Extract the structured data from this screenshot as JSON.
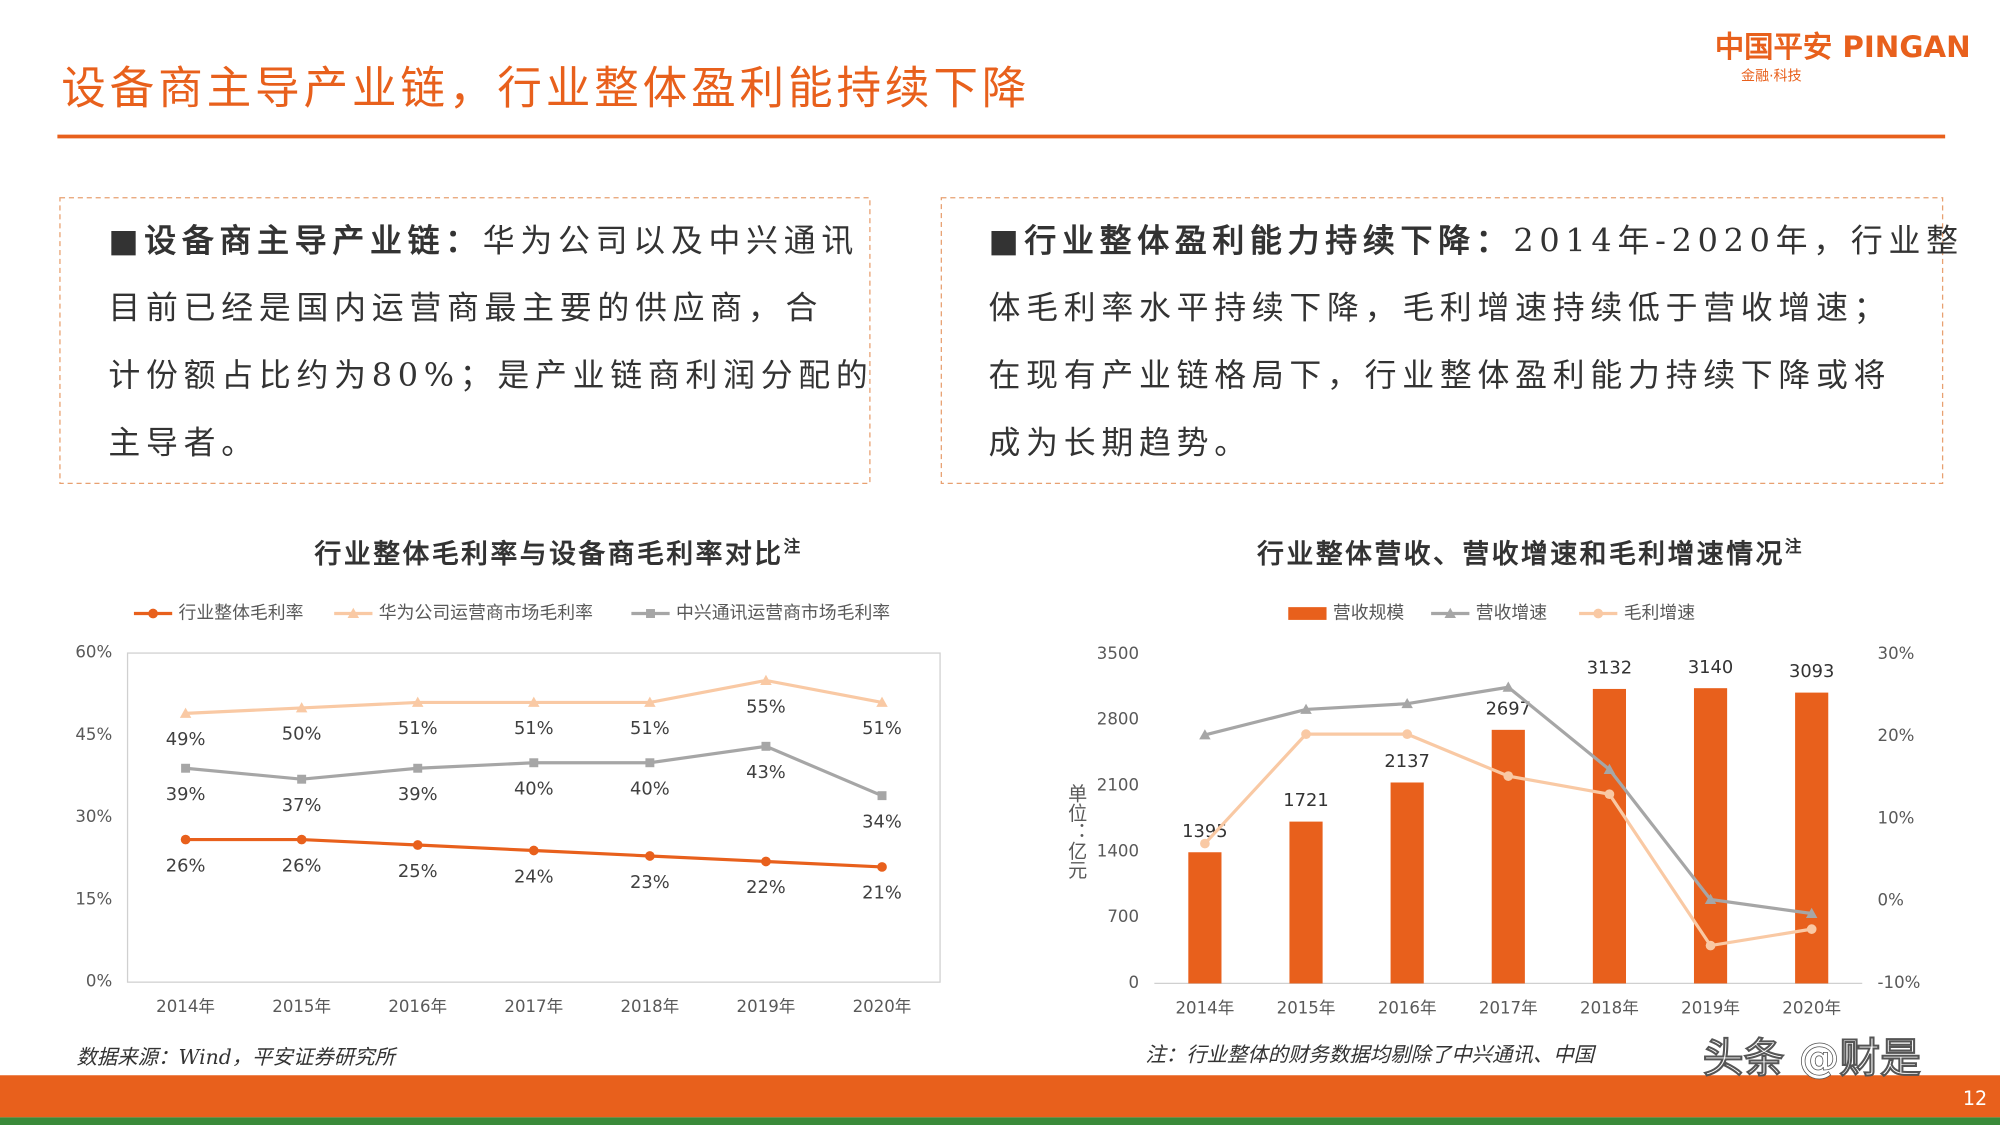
{
  "header": {
    "title": "设备商主导产业链，行业整体盈利能持续下降",
    "logo": "中国平安 PINGAN",
    "logo_sub": "金融·科技"
  },
  "boxes": [
    {
      "lead": "■设备商主导产业链：",
      "lines": [
        "华为公司以及中兴通讯",
        "目前已经是国内运营商最主要的供应商，合",
        "计份额占比约为80%；是产业链商利润分配的",
        "主导者。"
      ]
    },
    {
      "lead": "■行业整体盈利能力持续下降：",
      "lines": [
        "2014年-2020年，行业整",
        "体毛利率水平持续下降，毛利增速持续低于营收增速；",
        "在现有产业链格局下，行业整体盈利能力持续下降或将",
        "成为长期趋势。"
      ]
    }
  ],
  "chart_data": [
    {
      "type": "line",
      "title": "行业整体毛利率与设备商毛利率对比",
      "title_note": "注",
      "categories": [
        "2014年",
        "2015年",
        "2016年",
        "2017年",
        "2018年",
        "2019年",
        "2020年"
      ],
      "series": [
        {
          "name": "行业整体毛利率",
          "color": "#e8601c",
          "marker": "circle",
          "values": [
            26,
            26,
            25,
            24,
            23,
            22,
            21
          ],
          "value_labels": [
            "26%",
            "26%",
            "25%",
            "24%",
            "23%",
            "22%",
            "21%"
          ]
        },
        {
          "name": "华为公司运营商市场毛利率",
          "color": "#f9c9a4",
          "marker": "triangle",
          "values": [
            49,
            50,
            51,
            51,
            51,
            55,
            51
          ],
          "value_labels": [
            "49%",
            "50%",
            "51%",
            "51%",
            "51%",
            "55%",
            "51%"
          ]
        },
        {
          "name": "中兴通讯运营商市场毛利率",
          "color": "#a6a6a6",
          "marker": "square",
          "values": [
            39,
            37,
            39,
            40,
            40,
            43,
            34
          ],
          "value_labels": [
            "39%",
            "37%",
            "39%",
            "40%",
            "40%",
            "43%",
            "34%"
          ]
        }
      ],
      "ylim": [
        0,
        60
      ],
      "yticks": [
        {
          "value": 0,
          "label": "0%"
        },
        {
          "value": 15,
          "label": "15%"
        },
        {
          "value": 30,
          "label": "30%"
        },
        {
          "value": 45,
          "label": "45%"
        },
        {
          "value": 60,
          "label": "60%"
        }
      ],
      "grid": false
    },
    {
      "type": "bar",
      "title": "行业整体营收、营收增速和毛利增速情况",
      "title_note": "注",
      "y_label": "单位：亿元",
      "categories": [
        "2014年",
        "2015年",
        "2016年",
        "2017年",
        "2018年",
        "2019年",
        "2020年"
      ],
      "series": [
        {
          "name": "营收规模",
          "color": "#e8601c",
          "values": [
            1395,
            1721,
            2137,
            2697,
            3132,
            3140,
            3093
          ]
        },
        {
          "name": "营收增速",
          "color": "#a6a6a6",
          "type": "line",
          "axis": "y2",
          "marker": "triangle",
          "values": [
            20.2,
            23.3,
            24,
            26,
            16,
            0.2,
            -1.5
          ]
        },
        {
          "name": "毛利增速",
          "color": "#f9c9a4",
          "type": "line",
          "axis": "y2",
          "marker": "circle",
          "values": [
            7,
            20.3,
            20.3,
            15.2,
            13,
            -5.4,
            -3.4
          ]
        }
      ],
      "ylim": [
        0,
        3500
      ],
      "yticks": [
        0,
        700,
        1400,
        2100,
        2800,
        3500
      ],
      "y2lim": [
        -10,
        30
      ],
      "y2ticks": [
        {
          "value": -10,
          "label": "-10%"
        },
        {
          "value": 0,
          "label": "0%"
        },
        {
          "value": 10,
          "label": "10%"
        },
        {
          "value": 20,
          "label": "20%"
        },
        {
          "value": 30,
          "label": "30%"
        }
      ],
      "grid": false
    }
  ],
  "footer": {
    "source": "数据来源：Wind，平安证券研究所",
    "note": "注：行业整体的财务数据均剔除了中兴通讯、中国",
    "watermark": "头条 @财是",
    "page": "12"
  }
}
